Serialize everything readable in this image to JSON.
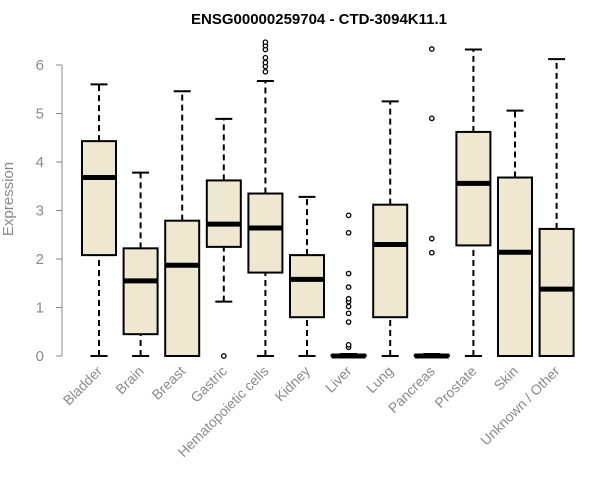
{
  "chart_data": {
    "type": "box",
    "title": "ENSG00000259704 - CTD-3094K11.1",
    "xlabel": "",
    "ylabel": "Expression",
    "ylim": [
      0,
      6.6
    ],
    "yticks": [
      0,
      1,
      2,
      3,
      4,
      5,
      6
    ],
    "box_fill": "#efe8d0",
    "box_stroke": "#000000",
    "categories": [
      "Bladder",
      "Brain",
      "Breast",
      "Gastric",
      "Hematopoietic cells",
      "Kidney",
      "Liver",
      "Lung",
      "Pancreas",
      "Prostate",
      "Skin",
      "Unknown / Other"
    ],
    "boxes": [
      {
        "name": "Bladder",
        "min": 0,
        "q1": 2.08,
        "median": 3.68,
        "q3": 4.43,
        "max": 5.6,
        "outliers": []
      },
      {
        "name": "Brain",
        "min": 0,
        "q1": 0.45,
        "median": 1.55,
        "q3": 2.22,
        "max": 3.78,
        "outliers": []
      },
      {
        "name": "Breast",
        "min": 0,
        "q1": 0,
        "median": 1.87,
        "q3": 2.79,
        "max": 5.46,
        "outliers": []
      },
      {
        "name": "Gastric",
        "min": 1.12,
        "q1": 2.25,
        "median": 2.72,
        "q3": 3.62,
        "max": 4.89,
        "outliers": [
          0
        ]
      },
      {
        "name": "Hematopoietic cells",
        "min": 0,
        "q1": 1.72,
        "median": 2.64,
        "q3": 3.35,
        "max": 5.67,
        "outliers": [
          5.86,
          5.97,
          6.05,
          6.15,
          6.32,
          6.4,
          6.47
        ]
      },
      {
        "name": "Kidney",
        "min": 0,
        "q1": 0.8,
        "median": 1.58,
        "q3": 2.08,
        "max": 3.28,
        "outliers": []
      },
      {
        "name": "Liver",
        "min": 0,
        "q1": 0,
        "median": 0,
        "q3": 0.02,
        "max": 0.04,
        "outliers": [
          0.18,
          0.23,
          0.7,
          0.88,
          1.02,
          1.12,
          1.18,
          1.42,
          1.7,
          2.54,
          2.9
        ]
      },
      {
        "name": "Lung",
        "min": 0,
        "q1": 0.8,
        "median": 2.3,
        "q3": 3.12,
        "max": 5.25,
        "outliers": []
      },
      {
        "name": "Pancreas",
        "min": 0,
        "q1": 0,
        "median": 0,
        "q3": 0.02,
        "max": 0.04,
        "outliers": [
          2.13,
          2.42,
          4.9,
          6.33
        ]
      },
      {
        "name": "Prostate",
        "min": 0,
        "q1": 2.28,
        "median": 3.56,
        "q3": 4.62,
        "max": 6.32,
        "outliers": []
      },
      {
        "name": "Skin",
        "min": 0,
        "q1": 0,
        "median": 2.14,
        "q3": 3.68,
        "max": 5.06,
        "outliers": []
      },
      {
        "name": "Unknown / Other",
        "min": 0,
        "q1": 0,
        "median": 1.38,
        "q3": 2.62,
        "max": 6.12,
        "outliers": []
      }
    ]
  }
}
